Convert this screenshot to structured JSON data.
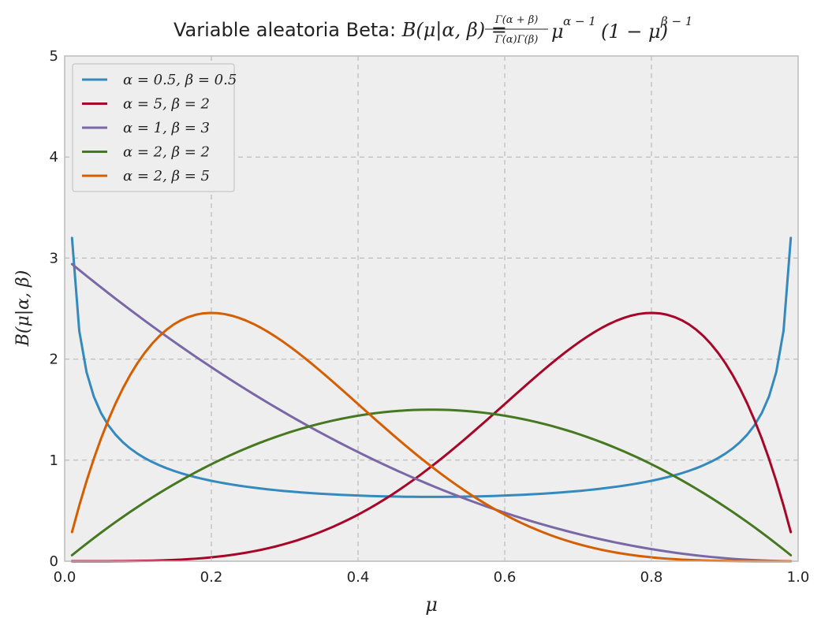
{
  "chart_data": {
    "type": "line",
    "title": "Variable aleatoria Beta: B(μ|α, β) = Γ(α + β)/Γ(α)Γ(β) μ^(α−1)(1 − μ)^(β−1)",
    "title_parts": {
      "prefix": "Variable aleatoria Beta: ",
      "lhs": "B(μ|α, β) =",
      "frac_num": "Γ(α + β)",
      "frac_den": "Γ(α)Γ(β)",
      "mu": "μ",
      "exp1": "α − 1",
      "middle": "(1 − μ)",
      "exp2": "β − 1"
    },
    "xlabel": "μ",
    "ylabel": "B(μ|α, β)",
    "xlim": [
      0.0,
      1.0
    ],
    "ylim": [
      0,
      5
    ],
    "xticks": [
      0.0,
      0.2,
      0.4,
      0.6,
      0.8,
      1.0
    ],
    "xtick_labels": [
      "0.0",
      "0.2",
      "0.4",
      "0.6",
      "0.8",
      "1.0"
    ],
    "yticks": [
      0,
      1,
      2,
      3,
      4,
      5
    ],
    "ytick_labels": [
      "0",
      "1",
      "2",
      "3",
      "4",
      "5"
    ],
    "grid": true,
    "legend_position": "top-left",
    "x_domain": [
      0.01,
      0.99
    ],
    "series": [
      {
        "name": "α = 0.5, β = 0.5",
        "alpha": 0.5,
        "beta": 0.5,
        "color": "#348abd"
      },
      {
        "name": "α = 5, β = 2",
        "alpha": 5,
        "beta": 2,
        "color": "#a60628"
      },
      {
        "name": "α = 1, β = 3",
        "alpha": 1,
        "beta": 3,
        "color": "#7a68a6"
      },
      {
        "name": "α = 2, β = 2",
        "alpha": 2,
        "beta": 2,
        "color": "#467821"
      },
      {
        "name": "α = 2, β = 5",
        "alpha": 2,
        "beta": 5,
        "color": "#d55e00"
      }
    ],
    "colors": {
      "plot_background": "#eeeeee",
      "grid": "#b0b0b0",
      "axes_edge": "#bcbcbc",
      "text": "#222222"
    }
  }
}
